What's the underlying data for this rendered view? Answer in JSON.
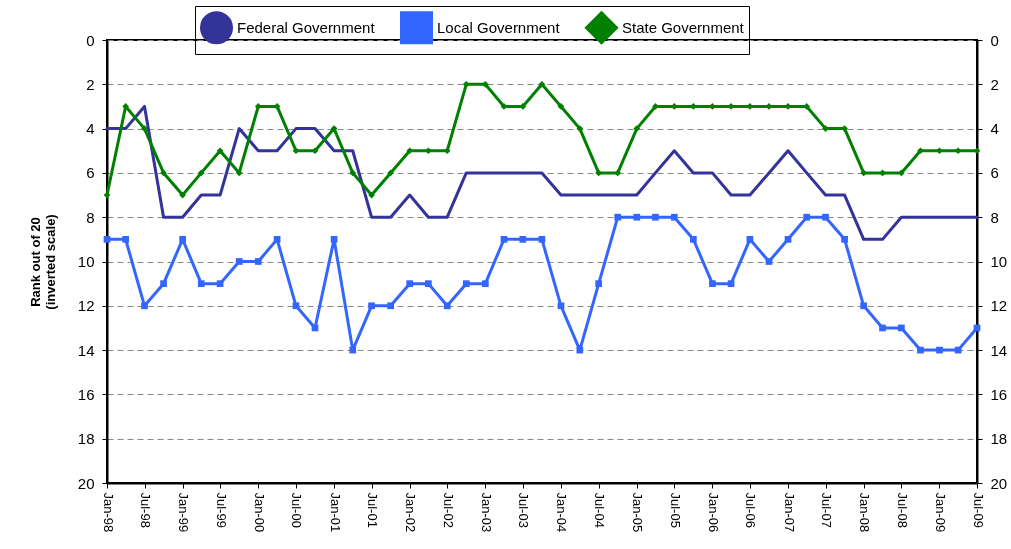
{
  "chart_data": {
    "type": "line",
    "ylabel": "Rank out of 20\n(inverted scale)",
    "x": [
      "1998-01",
      "1998-04",
      "1998-07",
      "1998-10",
      "1999-01",
      "1999-04",
      "1999-07",
      "1999-10",
      "2000-01",
      "2000-04",
      "2000-07",
      "2000-10",
      "2001-01",
      "2001-04",
      "2001-07",
      "2001-10",
      "2002-01",
      "2002-04",
      "2002-07",
      "2002-10",
      "2003-01",
      "2003-04",
      "2003-07",
      "2003-10",
      "2004-01",
      "2004-04",
      "2004-07",
      "2004-10",
      "2005-01",
      "2005-04",
      "2005-07",
      "2005-10",
      "2006-01",
      "2006-04",
      "2006-07",
      "2006-10",
      "2007-01",
      "2007-04",
      "2007-07",
      "2007-10",
      "2008-01",
      "2008-04",
      "2008-07",
      "2008-10",
      "2009-01",
      "2009-04",
      "2009-07"
    ],
    "series": [
      {
        "name": "Federal Government",
        "color": "#333399",
        "marker": "none",
        "values": [
          4,
          4,
          3,
          8,
          8,
          7,
          7,
          4,
          5,
          5,
          4,
          4,
          5,
          5,
          8,
          8,
          7,
          8,
          8,
          6,
          6,
          6,
          6,
          6,
          7,
          7,
          7,
          7,
          7,
          6,
          5,
          6,
          6,
          7,
          7,
          6,
          5,
          6,
          7,
          7,
          9,
          9,
          8,
          8,
          8,
          8,
          8
        ]
      },
      {
        "name": "Local Government",
        "color": "#3366ff",
        "marker": "square",
        "values": [
          9,
          9,
          12,
          11,
          9,
          11,
          11,
          10,
          10,
          9,
          12,
          13,
          9,
          14,
          12,
          12,
          11,
          11,
          12,
          11,
          11,
          9,
          9,
          9,
          12,
          14,
          11,
          8,
          8,
          8,
          8,
          9,
          11,
          11,
          9,
          10,
          9,
          8,
          8,
          9,
          12,
          13,
          13,
          14,
          14,
          14,
          13
        ]
      },
      {
        "name": "State Government",
        "color": "#008000",
        "marker": "diamond",
        "values": [
          7,
          3,
          4,
          6,
          7,
          6,
          5,
          6,
          3,
          3,
          5,
          5,
          4,
          6,
          7,
          6,
          5,
          5,
          5,
          2,
          2,
          3,
          3,
          2,
          3,
          4,
          6,
          6,
          4,
          3,
          3,
          3,
          3,
          3,
          3,
          3,
          3,
          3,
          4,
          4,
          6,
          6,
          6,
          5,
          5,
          5,
          5
        ]
      }
    ],
    "xlim": [
      "1998-01",
      "2009-07"
    ],
    "xticks": [
      {
        "value": "1998-01",
        "label": "Jan-98"
      },
      {
        "value": "1998-07",
        "label": "Jul-98"
      },
      {
        "value": "1999-01",
        "label": "Jan-99"
      },
      {
        "value": "1999-07",
        "label": "Jul-99"
      },
      {
        "value": "2000-01",
        "label": "Jan-00"
      },
      {
        "value": "2000-07",
        "label": "Jul-00"
      },
      {
        "value": "2001-01",
        "label": "Jan-01"
      },
      {
        "value": "2001-07",
        "label": "Jul-01"
      },
      {
        "value": "2002-01",
        "label": "Jan-02"
      },
      {
        "value": "2002-07",
        "label": "Jul-02"
      },
      {
        "value": "2003-01",
        "label": "Jan-03"
      },
      {
        "value": "2003-07",
        "label": "Jul-03"
      },
      {
        "value": "2004-01",
        "label": "Jan-04"
      },
      {
        "value": "2004-07",
        "label": "Jul-04"
      },
      {
        "value": "2005-01",
        "label": "Jan-05"
      },
      {
        "value": "2005-07",
        "label": "Jul-05"
      },
      {
        "value": "2006-01",
        "label": "Jan-06"
      },
      {
        "value": "2006-07",
        "label": "Jul-06"
      },
      {
        "value": "2007-01",
        "label": "Jan-07"
      },
      {
        "value": "2007-07",
        "label": "Jul-07"
      },
      {
        "value": "2008-01",
        "label": "Jan-08"
      },
      {
        "value": "2008-07",
        "label": "Jul-08"
      },
      {
        "value": "2009-01",
        "label": "Jan-09"
      },
      {
        "value": "2009-07",
        "label": "Jul-09"
      }
    ],
    "ylim": [
      20,
      0
    ],
    "yticks": [
      0,
      2,
      4,
      6,
      8,
      10,
      12,
      14,
      16,
      18,
      20
    ],
    "y2lim": [
      20,
      0
    ],
    "y2ticks": [
      0,
      2,
      4,
      6,
      8,
      10,
      12,
      14,
      16,
      18,
      20
    ],
    "grid": "y",
    "legend": "top"
  }
}
